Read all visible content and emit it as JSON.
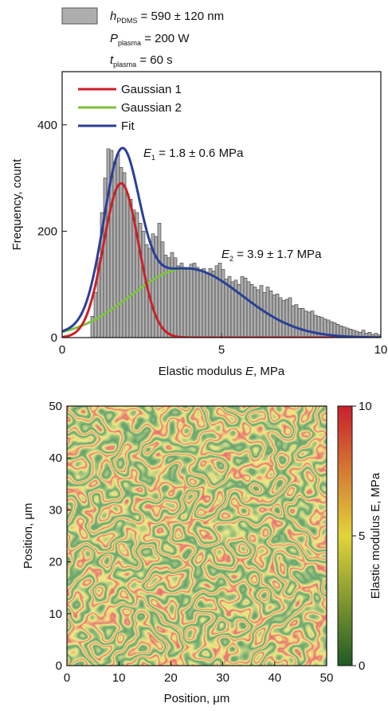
{
  "chart_data": [
    {
      "type": "bar",
      "xlabel": {
        "main": "Elastic modulus ",
        "italic": "E",
        "tail": ", MPa"
      },
      "ylabel": "Frequency, count",
      "xlim": [
        0,
        10
      ],
      "ylim": [
        0,
        500
      ],
      "xticks": [
        "0",
        "5",
        "10"
      ],
      "yticks": [
        "0",
        "200",
        "400"
      ],
      "xtick_values": [
        0,
        5,
        10
      ],
      "ytick_values": [
        0,
        200,
        400
      ],
      "colors": {
        "bars": "#aeaeae",
        "gaussian1": "#cc2027",
        "gaussian2": "#7ec241",
        "fit": "#2b3e9a"
      },
      "header": {
        "h_var": "h",
        "h_sub": "PDMS",
        "h_value": " = 590 ± 120 nm",
        "p_var": "P",
        "p_sub": "plasma",
        "p_value": " = 200 W",
        "t_var": "t",
        "t_sub": "plasma",
        "t_value": " = 60 s"
      },
      "legend": [
        {
          "label": "Gaussian 1",
          "color": "#cc2027"
        },
        {
          "label": "Gaussian 2",
          "color": "#7ec241"
        },
        {
          "label": "Fit",
          "color": "#2b3e9a"
        }
      ],
      "annotations": {
        "e1_var": "E",
        "e1_sub": "1",
        "e1_value": " = 1.8 ± 0.6 MPa",
        "e2_var": "E",
        "e2_sub": "2",
        "e2_value": " = 3.9 ± 1.7 MPa"
      },
      "bin_width": 0.1,
      "bin_start": 0.9,
      "values": [
        40,
        85,
        150,
        235,
        300,
        355,
        352,
        330,
        345,
        320,
        310,
        270,
        260,
        240,
        235,
        215,
        200,
        175,
        168,
        195,
        190,
        215,
        180,
        155,
        150,
        160,
        150,
        135,
        140,
        128,
        130,
        138,
        140,
        132,
        128,
        130,
        120,
        130,
        125,
        135,
        140,
        128,
        110,
        115,
        105,
        108,
        100,
        115,
        112,
        105,
        100,
        95,
        90,
        98,
        85,
        95,
        88,
        80,
        82,
        75,
        70,
        72,
        75,
        60,
        62,
        55,
        55,
        50,
        48,
        50,
        42,
        40,
        38,
        35,
        33,
        30,
        28,
        25,
        22,
        20,
        18,
        16,
        14,
        12,
        10,
        14,
        8,
        10,
        6,
        8,
        5
      ],
      "gaussian1": {
        "mean": 1.85,
        "sd": 0.55,
        "peak": 290
      },
      "gaussian2": {
        "mean": 3.9,
        "sd": 1.75,
        "peak": 130
      }
    },
    {
      "type": "heatmap",
      "xlabel": "Position, μm",
      "ylabel": "Position, μm",
      "xlim": [
        0,
        50
      ],
      "ylim": [
        0,
        50
      ],
      "xticks": [
        "0",
        "10",
        "20",
        "30",
        "40",
        "50"
      ],
      "yticks": [
        "0",
        "10",
        "20",
        "30",
        "40",
        "50"
      ],
      "xtick_values": [
        0,
        10,
        20,
        30,
        40,
        50
      ],
      "ytick_values": [
        0,
        10,
        20,
        30,
        40,
        50
      ],
      "colorbar": {
        "label": "Elastic modulus E, MPa",
        "range": [
          0,
          10
        ],
        "ticks": [
          "0",
          "5",
          "10"
        ],
        "tick_values": [
          0,
          5,
          10
        ],
        "colors": [
          "#1f5a26",
          "#e2d43a",
          "#c8202c"
        ]
      }
    }
  ]
}
